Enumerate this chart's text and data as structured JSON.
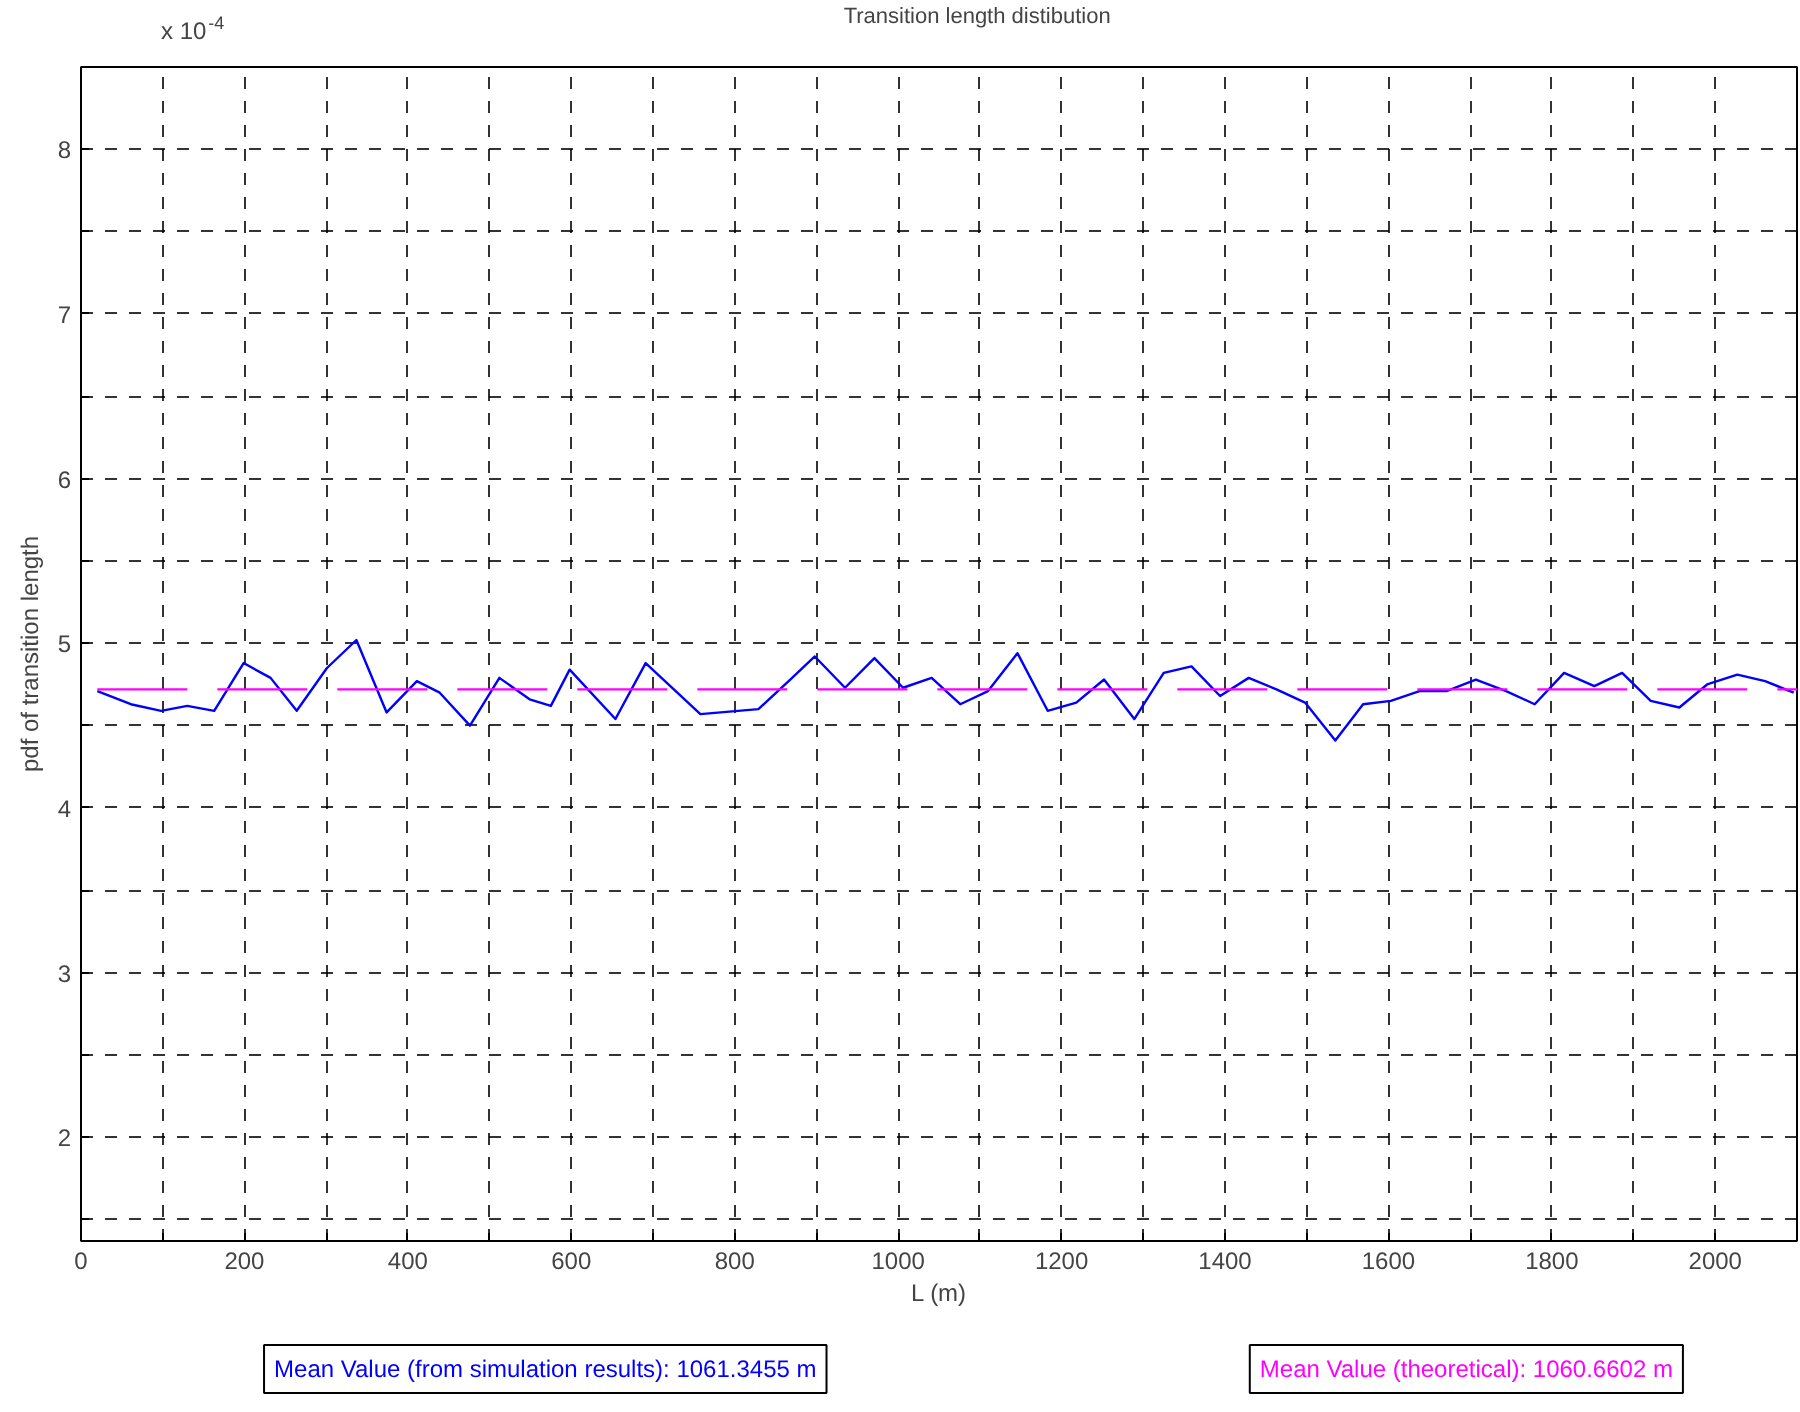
{
  "chart_data": {
    "type": "line",
    "title": "Transition length distibution",
    "xlabel": "L (m)",
    "ylabel": "pdf of transition length",
    "xlim": [
      0,
      2100
    ],
    "ylim": [
      1.37,
      8.5
    ],
    "xticks": [
      0,
      {
        "value": 100,
        "label": null
      },
      200,
      {
        "value": 300,
        "label": null
      },
      400,
      {
        "value": 500,
        "label": null
      },
      600,
      {
        "value": 700,
        "label": null
      },
      800,
      {
        "value": 900,
        "label": null
      },
      1000,
      {
        "value": 1100,
        "label": null
      },
      1200,
      {
        "value": 1300,
        "label": null
      },
      1400,
      {
        "value": 1500,
        "label": null
      },
      1600,
      {
        "value": 1700,
        "label": null
      },
      1800,
      {
        "value": 1900,
        "label": null
      },
      2000
    ],
    "yticks": [
      {
        "value": 1.5,
        "label": null
      },
      2,
      {
        "value": 2.5,
        "label": null
      },
      3,
      {
        "value": 3.5,
        "label": null
      },
      4,
      {
        "value": 4.5,
        "label": null
      },
      5,
      {
        "value": 5.5,
        "label": null
      },
      6,
      {
        "value": 6.5,
        "label": null
      },
      7,
      {
        "value": 7.5,
        "label": null
      },
      8
    ],
    "grid": true,
    "series": [
      {
        "color": "#0000ff",
        "line_style": "solid",
        "x": [
          20,
          61,
          98,
          130,
          163,
          199,
          232,
          264,
          301,
          337,
          374,
          411,
          439,
          476,
          512,
          549,
          575,
          598,
          654,
          691,
          758,
          829,
          866,
          898,
          935,
          971,
          1006,
          1041,
          1076,
          1110,
          1146,
          1183,
          1218,
          1252,
          1289,
          1325,
          1359,
          1394,
          1429,
          1463,
          1498,
          1535,
          1569,
          1603,
          1638,
          1671,
          1707,
          1744,
          1779,
          1815,
          1852,
          1886,
          1921,
          1956,
          1990,
          2027,
          2061,
          2096
        ],
        "values": [
          4.71,
          4.63,
          4.59,
          4.62,
          4.59,
          4.88,
          4.79,
          4.59,
          4.85,
          5.02,
          4.58,
          4.77,
          4.7,
          4.5,
          4.79,
          4.66,
          4.62,
          4.84,
          4.54,
          4.88,
          4.57,
          4.6,
          4.77,
          4.92,
          4.73,
          4.91,
          4.73,
          4.79,
          4.63,
          4.71,
          4.94,
          4.59,
          4.64,
          4.78,
          4.54,
          4.82,
          4.86,
          4.68,
          4.79,
          4.72,
          4.64,
          4.41,
          4.63,
          4.65,
          4.71,
          4.71,
          4.78,
          4.71,
          4.63,
          4.82,
          4.74,
          4.82,
          4.65,
          4.61,
          4.75,
          4.81,
          4.77,
          4.7
        ]
      },
      {
        "color": "#ff00ff",
        "line_style": "dashed",
        "x": [
          20,
          2100
        ],
        "values": [
          4.72,
          4.72
        ]
      }
    ],
    "annotations": [
      "Mean Value (from simulation results): 1061.3455 m",
      "Mean Value (theoretical): 1060.6602 m",
      "x 10$^{-4}$"
    ]
  }
}
